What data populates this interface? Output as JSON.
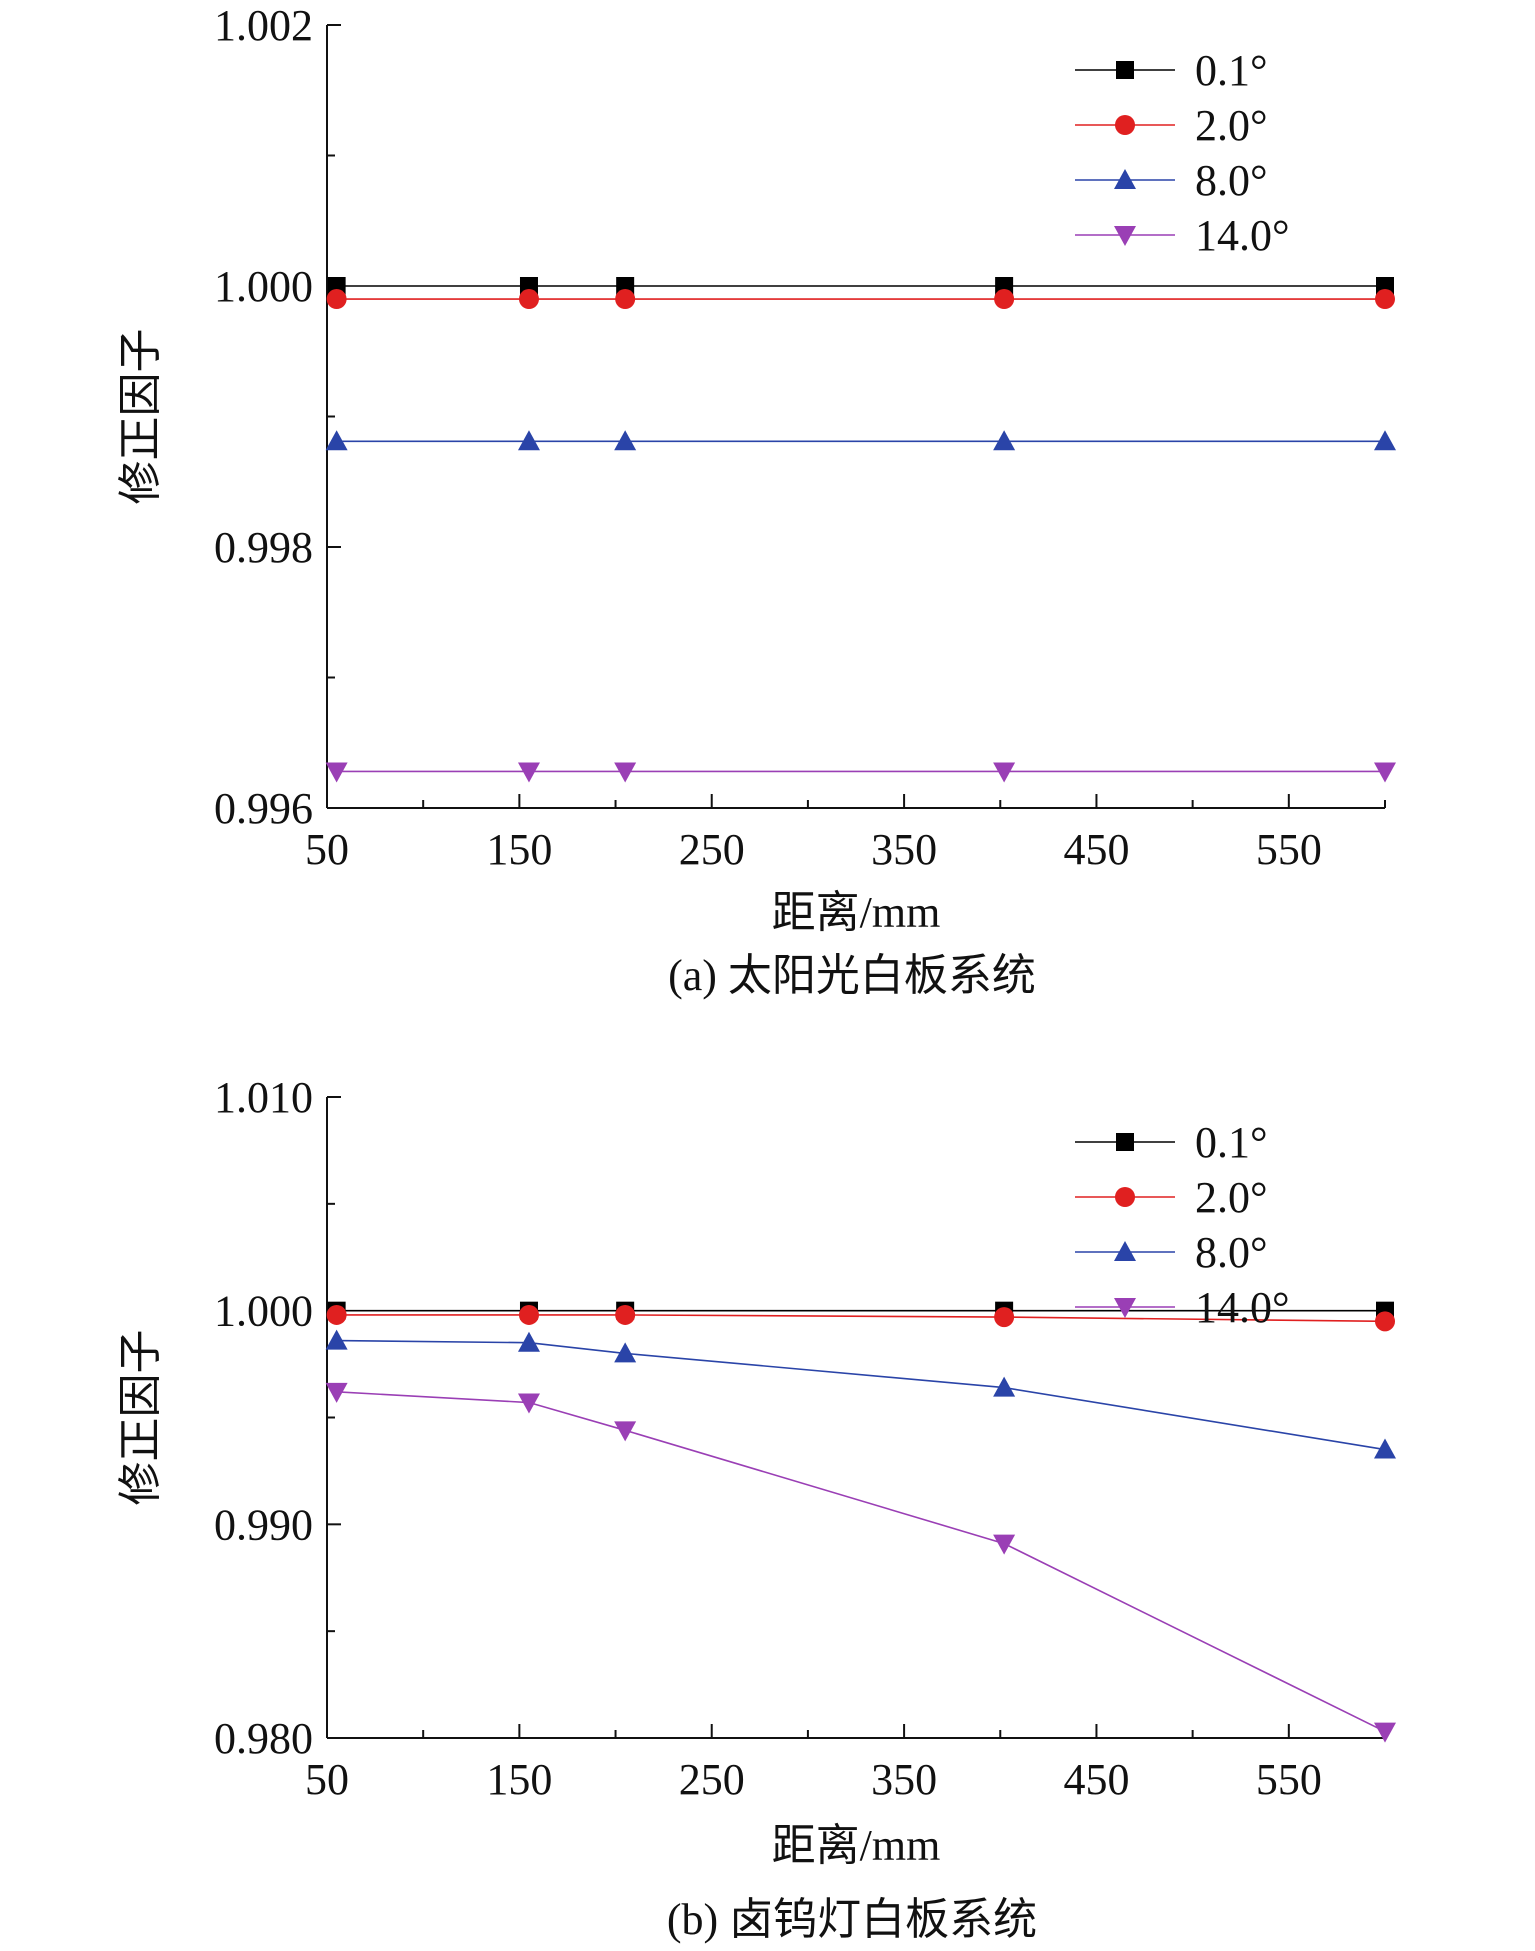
{
  "figure": {
    "caption_a": "(a) 太阳光白板系统",
    "caption_b": "(b) 卤钨灯白板系统"
  },
  "chart_data": [
    {
      "type": "line",
      "panel": "a",
      "xlabel": "距离/mm",
      "ylabel": "修正因子",
      "xlim": [
        50,
        600
      ],
      "ylim": [
        0.996,
        1.002
      ],
      "xticks": [
        "50",
        "150",
        "250",
        "350",
        "450",
        "550"
      ],
      "xtick_values": [
        50,
        150,
        250,
        350,
        450,
        550
      ],
      "yticks": [
        "0.996",
        "0.998",
        "1.000",
        "1.002"
      ],
      "ytick_values": [
        0.996,
        0.998,
        1.0,
        1.002
      ],
      "y_minor_step": 0.001,
      "x_minor_step": 50,
      "grid": false,
      "legend_position": "top-right",
      "x": [
        55,
        155,
        205,
        402,
        600
      ],
      "series": [
        {
          "name": "0.1°",
          "marker": "square",
          "color": "#000000",
          "values": [
            1.0,
            1.0,
            1.0,
            1.0,
            1.0
          ]
        },
        {
          "name": "2.0°",
          "marker": "circle",
          "color": "#e02020",
          "values": [
            0.9999,
            0.9999,
            0.9999,
            0.9999,
            0.9999
          ]
        },
        {
          "name": "8.0°",
          "marker": "triangle-up",
          "color": "#2a44a8",
          "values": [
            0.99881,
            0.99881,
            0.99881,
            0.99881,
            0.99881
          ]
        },
        {
          "name": "14.0°",
          "marker": "triangle-down",
          "color": "#9a3fb5",
          "values": [
            0.99628,
            0.99628,
            0.99628,
            0.99628,
            0.99628
          ]
        }
      ]
    },
    {
      "type": "line",
      "panel": "b",
      "xlabel": "距离/mm",
      "ylabel": "修正因子",
      "xlim": [
        50,
        600
      ],
      "ylim": [
        0.98,
        1.01
      ],
      "xticks": [
        "50",
        "150",
        "250",
        "350",
        "450",
        "550"
      ],
      "xtick_values": [
        50,
        150,
        250,
        350,
        450,
        550
      ],
      "yticks": [
        "0.980",
        "0.990",
        "1.000",
        "1.010"
      ],
      "ytick_values": [
        0.98,
        0.99,
        1.0,
        1.01
      ],
      "y_minor_step": 0.005,
      "x_minor_step": 50,
      "grid": false,
      "legend_position": "top-right",
      "x": [
        55,
        155,
        205,
        402,
        600
      ],
      "series": [
        {
          "name": "0.1°",
          "marker": "square",
          "color": "#000000",
          "values": [
            1.0,
            1.0,
            1.0,
            1.0,
            1.0
          ]
        },
        {
          "name": "2.0°",
          "marker": "circle",
          "color": "#e02020",
          "values": [
            0.9998,
            0.9998,
            0.9998,
            0.9997,
            0.9995
          ]
        },
        {
          "name": "8.0°",
          "marker": "triangle-up",
          "color": "#2a44a8",
          "values": [
            0.9986,
            0.9985,
            0.998,
            0.9964,
            0.9935
          ]
        },
        {
          "name": "14.0°",
          "marker": "triangle-down",
          "color": "#9a3fb5",
          "values": [
            0.9962,
            0.9957,
            0.9944,
            0.9891,
            0.9803
          ]
        }
      ]
    }
  ]
}
